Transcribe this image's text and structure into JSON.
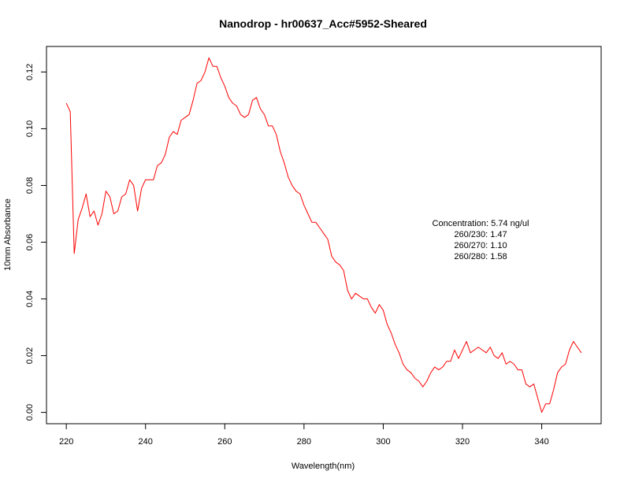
{
  "chart_data": {
    "type": "line",
    "title": "Nanodrop - hr00637_Acc#5952-Sheared",
    "xlabel": "Wavelength(nm)",
    "ylabel": "10mm Absorbance",
    "xlim": [
      215,
      355
    ],
    "ylim": [
      -0.004,
      0.129
    ],
    "x_ticks": [
      220,
      240,
      260,
      280,
      300,
      320,
      340
    ],
    "x_tick_labels": [
      "220",
      "240",
      "260",
      "280",
      "300",
      "320",
      "340"
    ],
    "y_ticks": [
      0.0,
      0.02,
      0.04,
      0.06,
      0.08,
      0.1,
      0.12
    ],
    "y_tick_labels": [
      "0.00",
      "0.02",
      "0.04",
      "0.06",
      "0.08",
      "0.10",
      "0.12"
    ],
    "grid": false,
    "series": [
      {
        "color": "#ff0000",
        "x": [
          220,
          221,
          222,
          223,
          224,
          225,
          226,
          227,
          228,
          229,
          230,
          231,
          232,
          233,
          234,
          235,
          236,
          237,
          238,
          239,
          240,
          241,
          242,
          243,
          244,
          245,
          246,
          247,
          248,
          249,
          250,
          251,
          252,
          253,
          254,
          255,
          256,
          257,
          258,
          259,
          260,
          261,
          262,
          263,
          264,
          265,
          266,
          267,
          268,
          269,
          270,
          271,
          272,
          273,
          274,
          275,
          276,
          277,
          278,
          279,
          280,
          281,
          282,
          283,
          284,
          285,
          286,
          287,
          288,
          289,
          290,
          291,
          292,
          293,
          294,
          295,
          296,
          297,
          298,
          299,
          300,
          301,
          302,
          303,
          304,
          305,
          306,
          307,
          308,
          309,
          310,
          311,
          312,
          313,
          314,
          315,
          316,
          317,
          318,
          319,
          320,
          321,
          322,
          323,
          324,
          325,
          326,
          327,
          328,
          329,
          330,
          331,
          332,
          333,
          334,
          335,
          336,
          337,
          338,
          339,
          340,
          341,
          342,
          343,
          344,
          345,
          346,
          347,
          348,
          349,
          350
        ],
        "y": [
          0.109,
          0.106,
          0.056,
          0.068,
          0.072,
          0.077,
          0.069,
          0.071,
          0.066,
          0.07,
          0.078,
          0.076,
          0.07,
          0.071,
          0.076,
          0.077,
          0.082,
          0.08,
          0.071,
          0.079,
          0.082,
          0.082,
          0.082,
          0.087,
          0.088,
          0.091,
          0.097,
          0.099,
          0.098,
          0.103,
          0.104,
          0.105,
          0.11,
          0.116,
          0.117,
          0.12,
          0.125,
          0.122,
          0.122,
          0.118,
          0.115,
          0.111,
          0.109,
          0.108,
          0.105,
          0.104,
          0.105,
          0.11,
          0.111,
          0.107,
          0.105,
          0.101,
          0.101,
          0.098,
          0.092,
          0.088,
          0.083,
          0.08,
          0.078,
          0.077,
          0.073,
          0.07,
          0.067,
          0.067,
          0.065,
          0.063,
          0.061,
          0.055,
          0.053,
          0.052,
          0.05,
          0.043,
          0.04,
          0.042,
          0.041,
          0.04,
          0.04,
          0.037,
          0.035,
          0.038,
          0.036,
          0.031,
          0.028,
          0.024,
          0.021,
          0.017,
          0.015,
          0.014,
          0.012,
          0.011,
          0.009,
          0.011,
          0.014,
          0.016,
          0.015,
          0.016,
          0.018,
          0.018,
          0.022,
          0.019,
          0.022,
          0.025,
          0.021,
          0.022,
          0.023,
          0.022,
          0.021,
          0.023,
          0.02,
          0.019,
          0.021,
          0.017,
          0.018,
          0.017,
          0.015,
          0.015,
          0.01,
          0.009,
          0.01,
          0.005,
          0.0,
          0.003,
          0.003,
          0.008,
          0.014,
          0.016,
          0.017,
          0.022,
          0.025,
          0.023,
          0.021
        ]
      }
    ],
    "annotations": [
      "Concentration: 5.74 ng/ul",
      "260/230: 1.47",
      "260/270: 1.10",
      "260/280: 1.58"
    ]
  }
}
